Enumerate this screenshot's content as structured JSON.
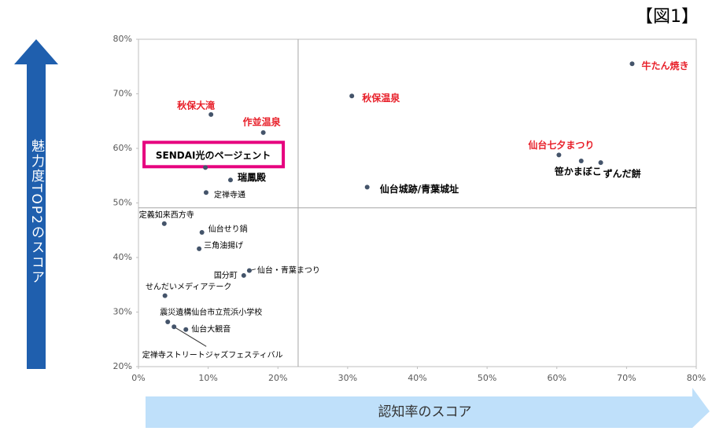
{
  "chart_data": {
    "type": "scatter",
    "title": "【図1】",
    "y_label": "魅力度TOP2のスコア",
    "x_label": "認知率のスコア",
    "labels": [
      "牛たん焼き",
      "秋保温泉",
      "秋保大滝",
      "作並温泉",
      "仙台七夕まつり",
      "笹かまぼこ",
      "ずんだ餅",
      "SENDAI光のページェント",
      "瑞鳳殿",
      "仙台城跡/青葉城址",
      "定禅寺通",
      "定義如来西方寺",
      "仙台せり鍋",
      "三角油揚げ",
      "仙台・青葉まつり",
      "国分町",
      "せんだいメディアテーク",
      "震災遺構仙台市立荒浜小学校",
      "定禅寺ストリートジャズフェスティバル",
      "仙台大観音"
    ],
    "x": [
      70.8,
      30.6,
      10.4,
      17.9,
      60.3,
      63.5,
      66.3,
      9.6,
      13.2,
      32.8,
      9.7,
      3.7,
      9.1,
      8.7,
      15.9,
      15.1,
      3.8,
      4.2,
      5.1,
      6.8
    ],
    "values": [
      75.5,
      69.6,
      66.2,
      62.9,
      58.8,
      57.7,
      57.4,
      56.5,
      54.2,
      52.9,
      51.9,
      46.2,
      44.6,
      41.6,
      37.6,
      36.7,
      33.0,
      28.2,
      27.3,
      26.8
    ],
    "label_colors": [
      "#e8202a",
      "#e8202a",
      "#e8202a",
      "#e8202a",
      "#e8202a",
      "#000000",
      "#000000",
      "#000000",
      "#000000",
      "#000000",
      "#000000",
      "#000000",
      "#000000",
      "#000000",
      "#000000",
      "#000000",
      "#000000",
      "#000000",
      "#000000",
      "#000000"
    ],
    "label_bold": [
      true,
      true,
      true,
      true,
      true,
      true,
      true,
      true,
      true,
      true,
      false,
      false,
      false,
      false,
      false,
      false,
      false,
      false,
      false,
      false
    ],
    "boxed": [
      7
    ],
    "box_color": "#e6007e",
    "color": "#44546a",
    "x_divider": 22.9,
    "y_divider": 49.1,
    "xlim": [
      0,
      80
    ],
    "ylim": [
      20,
      80
    ],
    "xticks": [
      {
        "value": 0,
        "label": "0%"
      },
      {
        "value": 10,
        "label": "10%"
      },
      {
        "value": 20,
        "label": "20%"
      },
      {
        "value": 30,
        "label": "30%"
      },
      {
        "value": 40,
        "label": "40%"
      },
      {
        "value": 50,
        "label": "50%"
      },
      {
        "value": 60,
        "label": "60%"
      },
      {
        "value": 70,
        "label": "70%"
      },
      {
        "value": 80,
        "label": "80%"
      }
    ],
    "yticks": [
      {
        "value": 20,
        "label": "20%"
      },
      {
        "value": 30,
        "label": "30%"
      },
      {
        "value": 40,
        "label": "40%"
      },
      {
        "value": 50,
        "label": "50%"
      },
      {
        "value": 60,
        "label": "60%"
      },
      {
        "value": 70,
        "label": "70%"
      },
      {
        "value": 80,
        "label": "80%"
      }
    ]
  }
}
